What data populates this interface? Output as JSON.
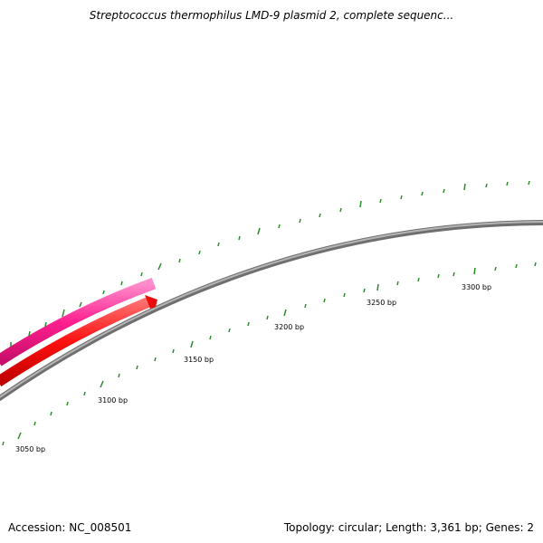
{
  "title": "Streptococcus thermophilus LMD-9 plasmid 2, complete sequenc...",
  "footer": {
    "accession": "Accession: NC_008501",
    "summary": "Topology: circular; Length: 3,361 bp; Genes: 2"
  },
  "map": {
    "visible_range_bp": [
      3035,
      3361
    ],
    "tick_labels": [
      "3050 bp",
      "3100 bp",
      "3150 bp",
      "3200 bp",
      "3250 bp",
      "3300 bp"
    ],
    "colors": {
      "backbone": "#8a8a8a",
      "tick": "#2a8a2a",
      "feature_outer": "#ff1f8f",
      "feature_inner": "#ff1010"
    }
  }
}
